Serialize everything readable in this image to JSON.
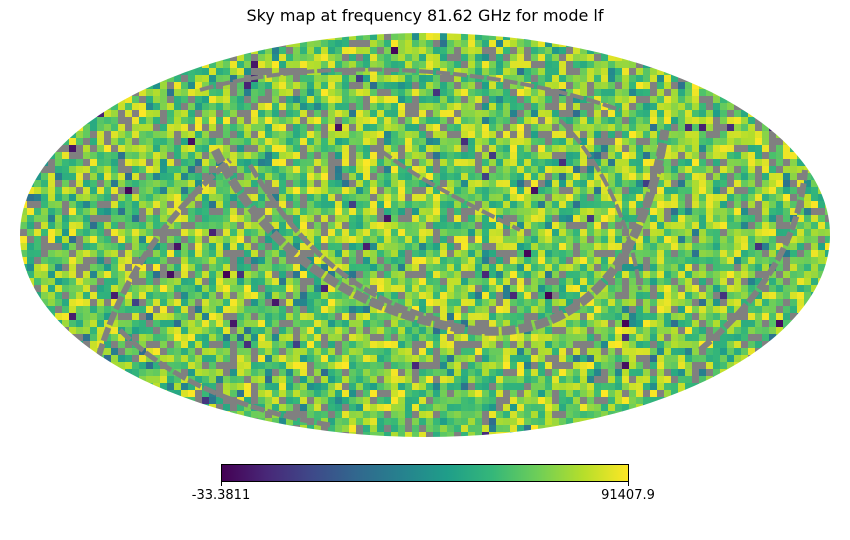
{
  "chart_data": {
    "type": "heatmap",
    "projection": "mollweide",
    "title": "Sky map at frequency 81.62 GHz for mode lf",
    "colormap": "viridis",
    "colorbar": {
      "min": -33.3811,
      "max": 91407.9,
      "min_label": "-33.3811",
      "max_label": "91407.9",
      "orientation": "horizontal",
      "placement": "bottom"
    },
    "value_distribution": {
      "typical_range": [
        55000,
        91407.9
      ],
      "occasional_low_values": true
    },
    "masked_color": "#808080",
    "masked_features": "grey arc-shaped bands of unobserved/masked pixels crossing the map",
    "colors": {
      "masked": "#808080",
      "viridis": [
        "#440154",
        "#482878",
        "#3e4989",
        "#31688e",
        "#26828e",
        "#1f9e89",
        "#35b779",
        "#6ece58",
        "#b5de2b",
        "#fde725"
      ]
    }
  }
}
